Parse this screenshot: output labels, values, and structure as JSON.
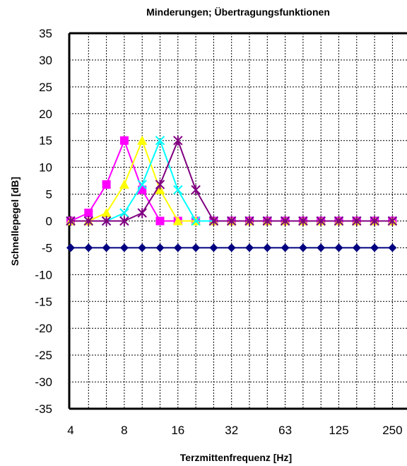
{
  "chart_data": {
    "type": "line",
    "title": "Minderungen; Übertragungsfunktionen",
    "xlabel": "Terzmittenfrequenz [Hz]",
    "ylabel": "Schnellepegel [dB]",
    "x": [
      4,
      5,
      6.3,
      8,
      10,
      12.5,
      16,
      20,
      25,
      31.5,
      40,
      50,
      63,
      80,
      100,
      125,
      160,
      200,
      250,
      315
    ],
    "x_tick_labels": [
      "4",
      "8",
      "16",
      "32",
      "63",
      "125",
      "250"
    ],
    "y_tick_labels": [
      "35",
      "30",
      "25",
      "20",
      "15",
      "10",
      "5",
      "0",
      "-5",
      "-10",
      "-15",
      "-20",
      "-25",
      "-30",
      "-35"
    ],
    "xscale": "log",
    "ylim": [
      -35,
      35
    ],
    "grid": true,
    "series": [
      {
        "color": "#000080",
        "marker": "diamond",
        "values": [
          -5,
          -5,
          -5,
          -5,
          -5,
          -5,
          -5,
          -5,
          -5,
          -5,
          -5,
          -5,
          -5,
          -5,
          -5,
          -5,
          -5,
          -5,
          -5,
          -5
        ]
      },
      {
        "color": "#ff00ff",
        "marker": "square",
        "values": [
          0,
          1.5,
          6.8,
          15,
          5.8,
          0,
          0,
          0,
          0,
          0,
          0,
          0,
          0,
          0,
          0,
          0,
          0,
          0,
          0,
          0
        ]
      },
      {
        "color": "#ffff00",
        "marker": "triangle",
        "values": [
          0,
          0,
          1.5,
          6.8,
          15,
          5.8,
          0,
          0,
          0,
          0,
          0,
          0,
          0,
          0,
          0,
          0,
          0,
          0,
          0,
          0
        ]
      },
      {
        "color": "#00ffff",
        "marker": "x",
        "values": [
          0,
          0,
          0,
          1.5,
          6.8,
          15,
          5.8,
          0,
          0,
          0,
          0,
          0,
          0,
          0,
          0,
          0,
          0,
          0,
          0,
          0
        ]
      },
      {
        "color": "#800080",
        "marker": "star",
        "values": [
          0,
          0,
          0,
          0,
          1.5,
          6.8,
          15,
          5.8,
          0,
          0,
          0,
          0,
          0,
          0,
          0,
          0,
          0,
          0,
          0,
          0
        ]
      }
    ]
  }
}
